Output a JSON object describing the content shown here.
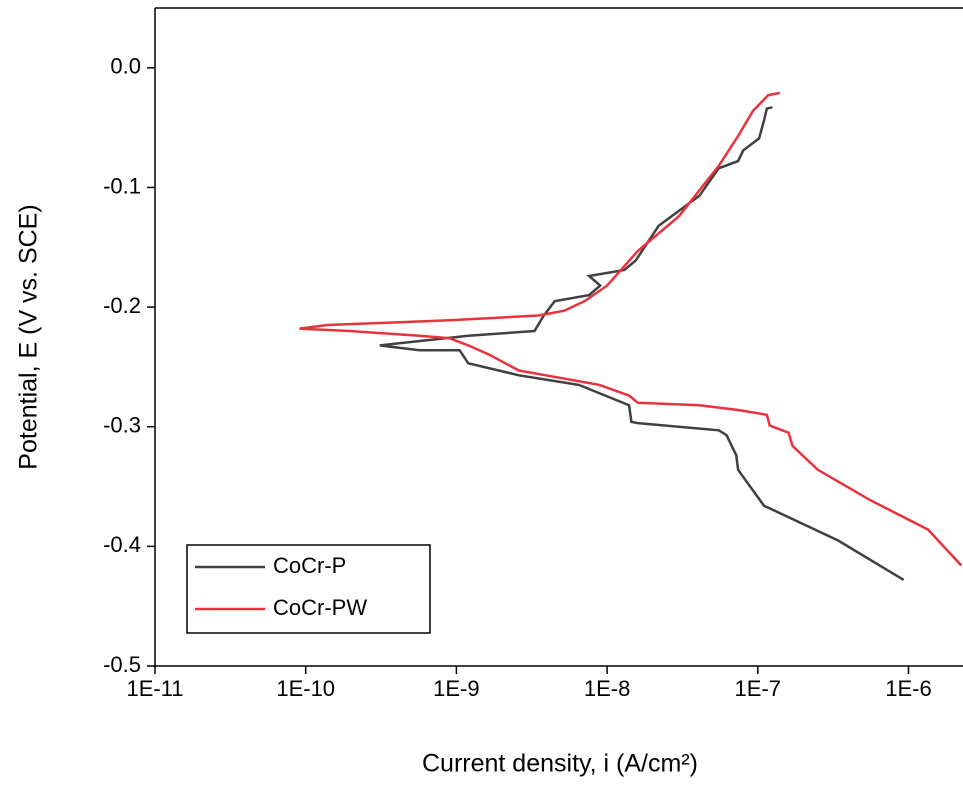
{
  "chart_data": {
    "type": "line",
    "xlabel": "Current density, i (A/cm²)",
    "ylabel": "Potential, E (V vs. SCE)",
    "xlog": true,
    "xlim": [
      1e-11,
      2.3e-06
    ],
    "ylim": [
      -0.5,
      0.05
    ],
    "xticks": [
      {
        "value": 1e-11,
        "label": "1E-11"
      },
      {
        "value": 1e-10,
        "label": "1E-10"
      },
      {
        "value": 1e-09,
        "label": "1E-9"
      },
      {
        "value": 1e-08,
        "label": "1E-8"
      },
      {
        "value": 1e-07,
        "label": "1E-7"
      },
      {
        "value": 1e-06,
        "label": "1E-6"
      }
    ],
    "yticks": [
      {
        "value": 0,
        "label": "0.0"
      },
      -0.1,
      -0.2,
      -0.3,
      -0.4,
      -0.5
    ],
    "legend": "lower left",
    "series": [
      {
        "name": "CoCr-P",
        "color": "#404040",
        "x": [
          9.3e-07,
          3.4e-07,
          1.1e-07,
          7.4e-08,
          7.2e-08,
          6.2e-08,
          5.5e-08,
          1.6e-08,
          1.45e-08,
          1.4e-08,
          6.5e-09,
          2.6e-09,
          1.2e-09,
          1.05e-09,
          5.7e-10,
          3.1e-10,
          1.2e-09,
          3.3e-09,
          3.8e-09,
          4.5e-09,
          7.6e-09,
          9e-09,
          7.6e-09,
          1.3e-08,
          1.55e-08,
          2.2e-08,
          4.1e-08,
          5.5e-08,
          7.4e-08,
          8e-08,
          1.02e-07,
          1.1e-07,
          1.15e-07,
          1.25e-07
        ],
        "values": [
          -0.428,
          -0.395,
          -0.366,
          -0.336,
          -0.324,
          -0.307,
          -0.303,
          -0.297,
          -0.296,
          -0.282,
          -0.265,
          -0.257,
          -0.247,
          -0.236,
          -0.236,
          -0.232,
          -0.224,
          -0.22,
          -0.207,
          -0.195,
          -0.19,
          -0.182,
          -0.174,
          -0.169,
          -0.161,
          -0.132,
          -0.107,
          -0.084,
          -0.078,
          -0.069,
          -0.059,
          -0.044,
          -0.034,
          -0.033
        ]
      },
      {
        "name": "CoCr-PW",
        "color": "#e8323c",
        "x": [
          2.24e-06,
          1.35e-06,
          5.5e-07,
          2.5e-07,
          1.7e-07,
          1.6e-07,
          1.2e-07,
          1.15e-07,
          7.4e-08,
          4.1e-08,
          1.6e-08,
          1.4e-08,
          8.9e-09,
          4.8e-09,
          2.6e-09,
          1.66e-09,
          1.2e-09,
          9e-10,
          5.7e-10,
          1.95e-10,
          9.1e-11,
          1.4e-10,
          9e-10,
          3.5e-09,
          5.2e-09,
          7.1e-09,
          1e-08,
          1.6e-08,
          3e-08,
          5.5e-08,
          7.4e-08,
          9.3e-08,
          1.17e-07,
          1.4e-07
        ],
        "values": [
          -0.416,
          -0.386,
          -0.361,
          -0.336,
          -0.316,
          -0.305,
          -0.299,
          -0.29,
          -0.286,
          -0.282,
          -0.28,
          -0.274,
          -0.265,
          -0.259,
          -0.253,
          -0.24,
          -0.232,
          -0.226,
          -0.224,
          -0.22,
          -0.218,
          -0.215,
          -0.211,
          -0.207,
          -0.203,
          -0.195,
          -0.182,
          -0.153,
          -0.124,
          -0.082,
          -0.057,
          -0.036,
          -0.023,
          -0.021
        ]
      }
    ]
  }
}
